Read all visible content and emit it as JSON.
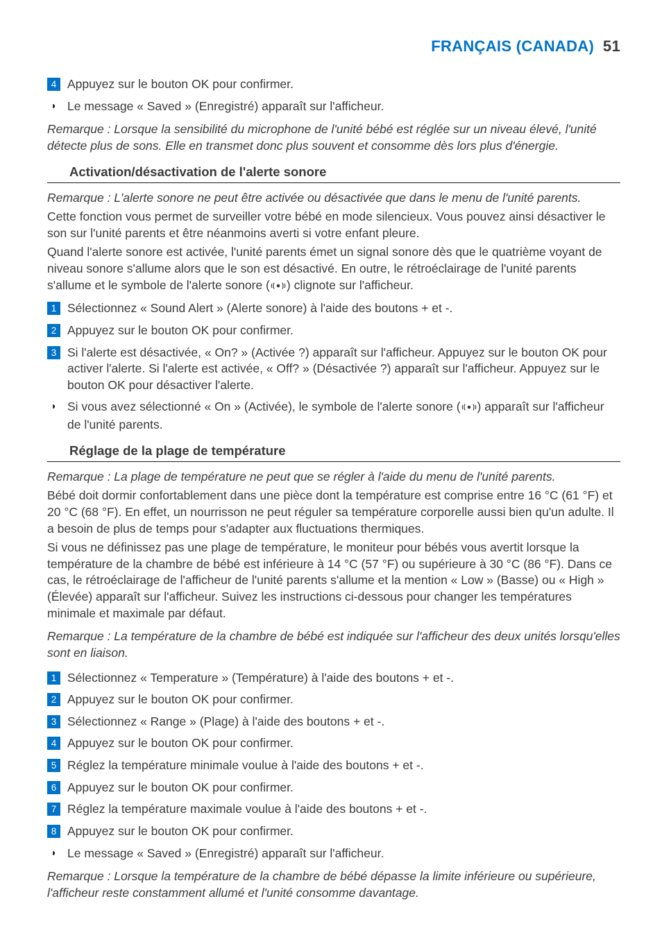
{
  "header": {
    "brand": "FRANÇAIS (CANADA)",
    "page_num": "51"
  },
  "icons": {
    "sound_alert_svg": "<svg width='22' height='14' viewBox='0 0 22 14'><g fill='none' stroke='#3a3a3a' stroke-width='1.2'><path d='M2 4 Q0.5 7 2 10'/><path d='M5 2.5 Q3 7 5 11.5'/><path d='M17 2.5 Q19 7 17 11.5'/><path d='M20 4 Q21.5 7 20 10'/></g><circle cx='11' cy='7' r='2.3' fill='#3a3a3a'/></svg>"
  },
  "blocks": {
    "intro": {
      "step4": "Appuyez sur le bouton OK pour confirmer.",
      "result": "Le message « Saved » (Enregistré) apparaît sur l'afficheur.",
      "note": "Remarque : Lorsque la sensibilité du microphone de l'unité bébé est réglée sur un niveau élevé, l'unité détecte plus de sons. Elle en transmet donc plus souvent et consomme dès lors plus d'énergie."
    },
    "sound": {
      "heading": "Activation/désactivation de l'alerte sonore",
      "note_top": "Remarque : L'alerte sonore ne peut être activée ou désactivée que dans le menu de l'unité parents.",
      "intro1": "Cette fonction vous permet de surveiller votre bébé en mode silencieux. Vous pouvez ainsi désactiver le son sur l'unité parents et être néanmoins averti si votre enfant pleure.",
      "intro2a": "Quand l'alerte sonore est activée, l'unité parents émet un signal sonore dès que le quatrième voyant de niveau sonore s'allume alors que le son est désactivé. En outre, le rétroéclairage de l'unité parents s'allume et le symbole de l'alerte sonore (",
      "intro2b": ") clignote sur l'afficheur.",
      "step1": "Sélectionnez « Sound Alert » (Alerte sonore) à l'aide des boutons + et -.",
      "step2": "Appuyez sur le bouton OK pour confirmer.",
      "step3": "Si l'alerte est désactivée, « On? » (Activée ?) apparaît sur l'afficheur. Appuyez sur le bouton OK pour activer l'alerte. Si l'alerte est activée, « Off? » (Désactivée ?) apparaît sur l'afficheur. Appuyez sur le bouton OK pour désactiver l'alerte.",
      "result_a": "Si vous avez sélectionné « On » (Activée), le symbole de l'alerte sonore (",
      "result_b": ") apparaît sur l'afficheur de l'unité parents."
    },
    "temp": {
      "heading": "Réglage de la plage de température",
      "note_top": "Remarque : La plage de température ne peut que se régler à l'aide du menu de l'unité parents.",
      "intro1": "Bébé doit dormir confortablement dans une pièce dont la température est comprise entre 16 °C (61 °F) et 20 °C (68 °F). En effet, un nourrisson ne peut réguler sa température corporelle aussi bien qu'un adulte. Il a besoin de plus de temps pour s'adapter aux fluctuations thermiques.",
      "intro2": "Si vous ne définissez pas une plage de température, le moniteur pour bébés vous avertit lorsque la température de la chambre de bébé est inférieure à 14 °C (57 °F) ou supérieure à 30 °C (86 °F). Dans ce cas, le rétroéclairage de l'afficheur de l'unité parents s'allume et la mention « Low » (Basse) ou « High » (Élevée) apparaît sur l'afficheur. Suivez les instructions ci-dessous pour changer les températures minimale et maximale par défaut.",
      "note_mid": "Remarque : La température de la chambre de bébé est indiquée sur l'afficheur des deux unités lorsqu'elles sont en liaison.",
      "step1": "Sélectionnez « Temperature » (Température) à l'aide des boutons + et -.",
      "step2": "Appuyez sur le bouton OK pour confirmer.",
      "step3": "Sélectionnez « Range » (Plage) à l'aide des boutons + et -.",
      "step4": "Appuyez sur le bouton OK pour confirmer.",
      "step5": "Réglez la température minimale voulue à l'aide des boutons + et -.",
      "step6": "Appuyez sur le bouton OK pour confirmer.",
      "step7": "Réglez la température maximale voulue à l'aide des boutons + et -.",
      "step8": "Appuyez sur le bouton OK pour confirmer.",
      "result": "Le message « Saved » (Enregistré) apparaît sur l'afficheur.",
      "note_end": "Remarque : Lorsque la température de la chambre de bébé dépasse la limite inférieure ou supérieure, l'afficheur reste constamment allumé et l'unité consomme davantage."
    }
  },
  "colors": {
    "brand": "#0073c8",
    "text": "#3a3a3a",
    "rule": "#1a1a1a",
    "bg": "#ffffff"
  }
}
